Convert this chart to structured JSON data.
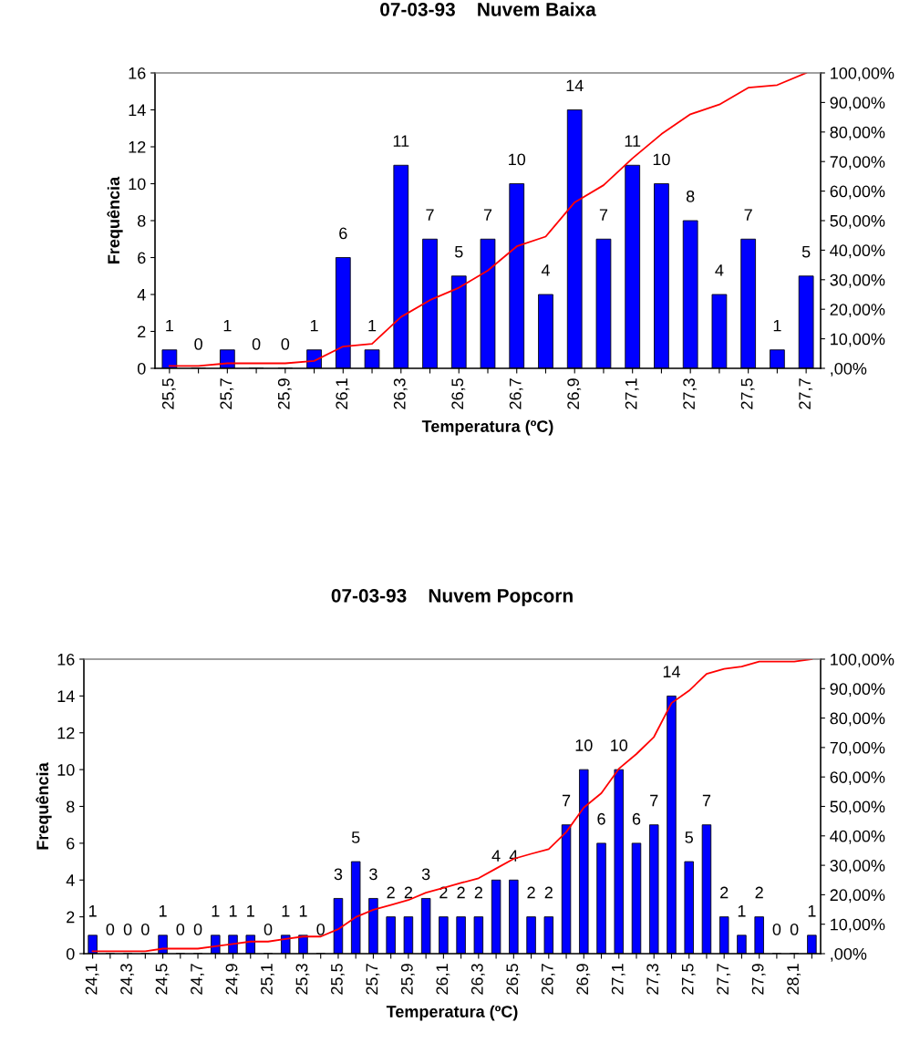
{
  "chart_data": [
    {
      "type": "bar",
      "title": "07-03-93    Nuvem Baixa",
      "xlabel": "Temperatura (ºC)",
      "ylabel": "Frequência",
      "categories": [
        "25,5",
        null,
        "25,7",
        null,
        "25,9",
        null,
        "26,1",
        null,
        "26,3",
        null,
        "26,5",
        null,
        "26,7",
        null,
        "26,9",
        null,
        "27,1",
        null,
        "27,3",
        null,
        "27,5",
        null,
        "27,7"
      ],
      "series": [
        {
          "color": "#0000ff",
          "data_labels": true,
          "values": [
            1,
            0,
            1,
            0,
            0,
            1,
            6,
            1,
            11,
            7,
            5,
            7,
            10,
            4,
            14,
            7,
            11,
            10,
            8,
            4,
            7,
            1,
            5
          ]
        },
        {
          "type": "line",
          "axis": "y2",
          "color": "#ff0000",
          "values": [
            0.8,
            0.8,
            1.7,
            1.7,
            1.7,
            2.5,
            7.4,
            8.3,
            17.4,
            23.1,
            27.3,
            33.1,
            41.3,
            44.6,
            56.2,
            62.0,
            71.1,
            79.3,
            86.0,
            89.3,
            95.0,
            95.9,
            100
          ]
        }
      ],
      "ylim": [
        0,
        16
      ],
      "yticks": [
        0,
        2,
        4,
        6,
        8,
        10,
        12,
        14,
        16
      ],
      "y2lim": [
        0,
        100
      ],
      "y2ticks": [
        {
          "value": 0,
          "label": ",00%"
        },
        {
          "value": 10,
          "label": "10,00%"
        },
        {
          "value": 20,
          "label": "20,00%"
        },
        {
          "value": 30,
          "label": "30,00%"
        },
        {
          "value": 40,
          "label": "40,00%"
        },
        {
          "value": 50,
          "label": "50,00%"
        },
        {
          "value": 60,
          "label": "60,00%"
        },
        {
          "value": 70,
          "label": "70,00%"
        },
        {
          "value": 80,
          "label": "80,00%"
        },
        {
          "value": 90,
          "label": "90,00%"
        },
        {
          "value": 100,
          "label": "100,00%"
        }
      ],
      "grid": false,
      "legend": false,
      "marker": "none",
      "line_style": "solid"
    },
    {
      "type": "bar",
      "title": "07-03-93    Nuvem Popcorn",
      "xlabel": "Temperatura (ºC)",
      "ylabel": "Frequência",
      "categories": [
        "24,1",
        null,
        "24,3",
        null,
        "24,5",
        null,
        "24,7",
        null,
        "24,9",
        null,
        "25,1",
        null,
        "25,3",
        null,
        "25,5",
        null,
        "25,7",
        null,
        "25,9",
        null,
        "26,1",
        null,
        "26,3",
        null,
        "26,5",
        null,
        "26,7",
        null,
        "26,9",
        null,
        "27,1",
        null,
        "27,3",
        null,
        "27,5",
        null,
        "27,7",
        null,
        "27,9",
        null,
        "28,1",
        null
      ],
      "series": [
        {
          "color": "#0000ff",
          "data_labels": true,
          "values": [
            1,
            0,
            0,
            0,
            1,
            0,
            0,
            1,
            1,
            1,
            0,
            1,
            1,
            0,
            3,
            5,
            3,
            2,
            2,
            3,
            2,
            2,
            2,
            4,
            4,
            2,
            2,
            7,
            10,
            6,
            10,
            6,
            7,
            14,
            5,
            7,
            2,
            1,
            2,
            0,
            0,
            1
          ]
        },
        {
          "type": "line",
          "axis": "y2",
          "color": "#ff0000",
          "values": [
            0.8,
            0.8,
            0.8,
            0.8,
            1.7,
            1.7,
            1.7,
            2.5,
            3.3,
            4.1,
            4.1,
            5.0,
            5.8,
            5.8,
            8.3,
            12.4,
            14.9,
            16.5,
            18.2,
            20.7,
            22.3,
            24.0,
            25.6,
            28.9,
            32.2,
            33.9,
            35.5,
            41.3,
            49.6,
            54.5,
            62.8,
            67.8,
            73.6,
            85.1,
            89.3,
            95.0,
            96.7,
            97.5,
            99.2,
            99.2,
            99.2,
            100
          ]
        }
      ],
      "ylim": [
        0,
        16
      ],
      "yticks": [
        0,
        2,
        4,
        6,
        8,
        10,
        12,
        14,
        16
      ],
      "y2lim": [
        0,
        100
      ],
      "y2ticks": [
        {
          "value": 0,
          "label": ",00%"
        },
        {
          "value": 10,
          "label": "10,00%"
        },
        {
          "value": 20,
          "label": "20,00%"
        },
        {
          "value": 30,
          "label": "30,00%"
        },
        {
          "value": 40,
          "label": "40,00%"
        },
        {
          "value": 50,
          "label": "50,00%"
        },
        {
          "value": 60,
          "label": "60,00%"
        },
        {
          "value": 70,
          "label": "70,00%"
        },
        {
          "value": 80,
          "label": "80,00%"
        },
        {
          "value": 90,
          "label": "90,00%"
        },
        {
          "value": 100,
          "label": "100,00%"
        }
      ],
      "grid": false,
      "legend": false,
      "marker": "none",
      "line_style": "solid"
    }
  ]
}
